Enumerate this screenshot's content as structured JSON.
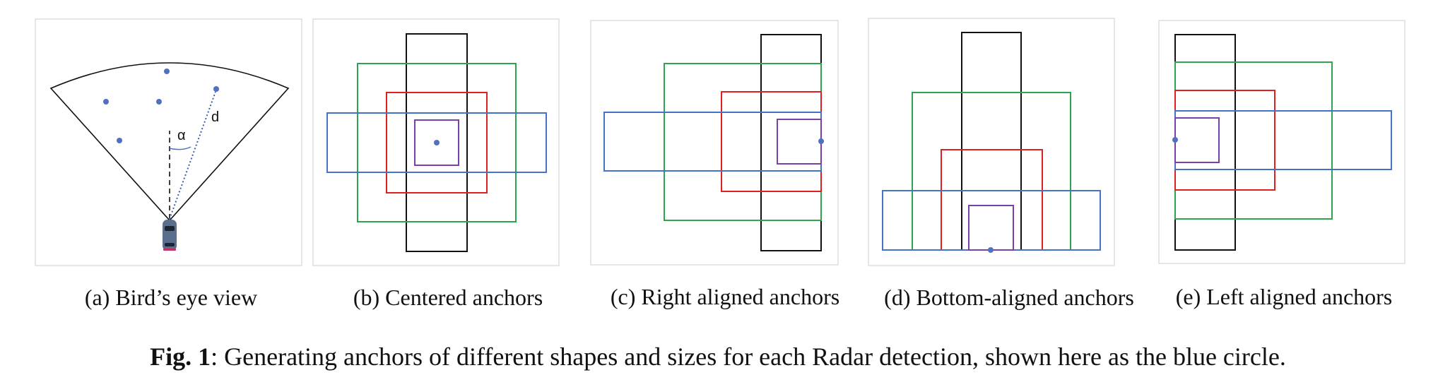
{
  "colors": {
    "blue": "#4472c4",
    "green": "#2ea44f",
    "red": "#e02020",
    "purple": "#7b3fa8",
    "black": "#111111",
    "dot": "#4f71be",
    "car": "#5a6f8e"
  },
  "panels": [
    {
      "id": "a",
      "caption": "(a) Bird’s eye view",
      "labels": {
        "angle": "α",
        "distance": "d"
      }
    },
    {
      "id": "b",
      "caption": "(b) Centered anchors"
    },
    {
      "id": "c",
      "caption": "(c) Right aligned anchors"
    },
    {
      "id": "d",
      "caption": "(d) Bottom-aligned anchors"
    },
    {
      "id": "e",
      "caption": "(e) Left aligned anchors"
    }
  ],
  "figure_caption": {
    "label": "Fig. 1",
    "text": ": Generating anchors of different shapes and sizes for each Radar detection, shown here as the blue circle."
  }
}
